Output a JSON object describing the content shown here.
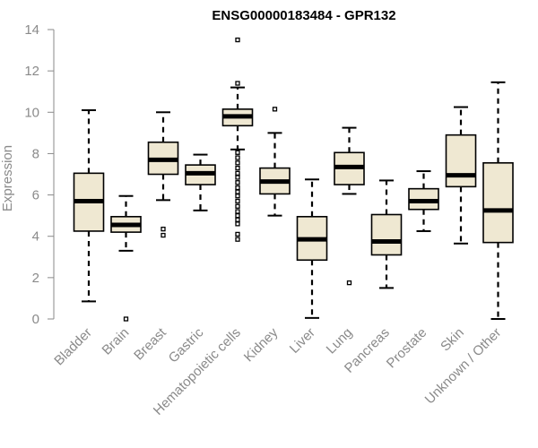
{
  "chart_data": {
    "type": "box",
    "title": "ENSG00000183484 - GPR132",
    "xlabel": "",
    "ylabel": "Expression",
    "ylim": [
      0,
      14
    ],
    "yticks": [
      0,
      2,
      4,
      6,
      8,
      10,
      12,
      14
    ],
    "grid": false,
    "legend": "none",
    "box_fill": "#efe8d2",
    "median_color": "#000000",
    "axis_color": "#8a8a8a",
    "categories": [
      "Bladder",
      "Brain",
      "Breast",
      "Gastric",
      "Hematopoietic cells",
      "Kidney",
      "Liver",
      "Lung",
      "Pancreas",
      "Prostate",
      "Skin",
      "Unknown / Other"
    ],
    "boxes": [
      {
        "category": "Bladder",
        "min": 0.85,
        "q1": 4.25,
        "median": 5.7,
        "q3": 7.05,
        "max": 10.1,
        "outliers": []
      },
      {
        "category": "Brain",
        "min": 3.3,
        "q1": 4.2,
        "median": 4.55,
        "q3": 4.95,
        "max": 5.95,
        "outliers": [
          0.0
        ]
      },
      {
        "category": "Breast",
        "min": 5.75,
        "q1": 7.0,
        "median": 7.7,
        "q3": 8.55,
        "max": 10.0,
        "outliers": [
          4.05,
          4.35
        ]
      },
      {
        "category": "Gastric",
        "min": 5.25,
        "q1": 6.5,
        "median": 7.05,
        "q3": 7.45,
        "max": 7.95,
        "outliers": []
      },
      {
        "category": "Hematopoietic cells",
        "min": 8.2,
        "q1": 9.35,
        "median": 9.8,
        "q3": 10.15,
        "max": 11.2,
        "outliers": [
          13.5,
          11.4,
          3.85,
          4.1,
          4.6,
          4.8,
          5.0,
          5.2,
          5.45,
          5.7,
          5.95,
          6.15,
          6.35,
          6.6,
          6.85,
          7.05,
          7.3,
          7.55,
          7.8,
          8.05
        ]
      },
      {
        "category": "Kidney",
        "min": 5.0,
        "q1": 6.05,
        "median": 6.65,
        "q3": 7.3,
        "max": 9.0,
        "outliers": [
          10.15
        ]
      },
      {
        "category": "Liver",
        "min": 0.05,
        "q1": 2.85,
        "median": 3.85,
        "q3": 4.95,
        "max": 6.75,
        "outliers": []
      },
      {
        "category": "Lung",
        "min": 6.05,
        "q1": 6.5,
        "median": 7.35,
        "q3": 8.05,
        "max": 9.25,
        "outliers": [
          1.75
        ]
      },
      {
        "category": "Pancreas",
        "min": 1.5,
        "q1": 3.1,
        "median": 3.75,
        "q3": 5.05,
        "max": 6.7,
        "outliers": []
      },
      {
        "category": "Prostate",
        "min": 4.25,
        "q1": 5.3,
        "median": 5.7,
        "q3": 6.3,
        "max": 7.15,
        "outliers": []
      },
      {
        "category": "Skin",
        "min": 3.65,
        "q1": 6.4,
        "median": 6.95,
        "q3": 8.9,
        "max": 10.25,
        "outliers": []
      },
      {
        "category": "Unknown / Other",
        "min": 0.0,
        "q1": 3.7,
        "median": 5.25,
        "q3": 7.55,
        "max": 11.45,
        "outliers": []
      }
    ]
  }
}
